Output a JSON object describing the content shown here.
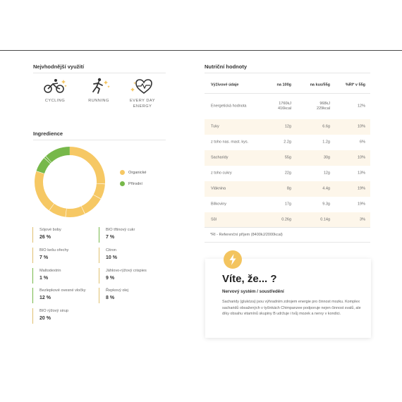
{
  "usage": {
    "title": "Nejvhodnější využití",
    "items": [
      {
        "label": "CYCLING",
        "icon": "cyclist-icon"
      },
      {
        "label": "RUNNING",
        "icon": "runner-icon"
      },
      {
        "label_line1": "EVERY DAY",
        "label_line2": "ENERGY",
        "icon": "heart-pulse-icon"
      }
    ]
  },
  "ingredients": {
    "title": "Ingredience",
    "legend": [
      {
        "label": "Organické",
        "color": "#f6c864"
      },
      {
        "label": "Přírodní",
        "color": "#77b84a"
      }
    ],
    "items": [
      {
        "name": "Sójové boby",
        "pct": "26 %",
        "type": "organic"
      },
      {
        "name": "BIO třtinový cukr",
        "pct": "7 %",
        "type": "natural"
      },
      {
        "name": "BIO kešu ořechy",
        "pct": "7 %",
        "type": "organic"
      },
      {
        "name": "Citron",
        "pct": "10 %",
        "type": "organic"
      },
      {
        "name": "Maltodextrin",
        "pct": "1 %",
        "type": "natural"
      },
      {
        "name": "Jáhlovo-rýžový crispies",
        "pct": "9 %",
        "type": "organic"
      },
      {
        "name": "Bezlepkové ovesné vločky",
        "pct": "12 %",
        "type": "natural"
      },
      {
        "name": "Řepkový olej",
        "pct": "8 %",
        "type": "organic"
      },
      {
        "name": "BIO rýžový sirup",
        "pct": "20 %",
        "type": "organic"
      }
    ]
  },
  "nutrition": {
    "title": "Nutriční hodnoty",
    "headers": [
      "Výživové údaje",
      "na 100g",
      "na kus/55g",
      "%RI* v 55g"
    ],
    "rows": [
      {
        "name": "Energetická hodnota",
        "per100_line1": "1760kJ",
        "per100_line2": "416kcal",
        "perPiece_line1": "968kJ",
        "perPiece_line2": "229kcal",
        "ri": "12%"
      },
      {
        "name": "Tuky",
        "per100": "12g",
        "perPiece": "6.6g",
        "ri": "10%"
      },
      {
        "name": "z toho nas. mast. kys.",
        "per100": "2.2g",
        "perPiece": "1.2g",
        "ri": "6%"
      },
      {
        "name": "Sacharidy",
        "per100": "55g",
        "perPiece": "30g",
        "ri": "10%"
      },
      {
        "name": "z toho cukry",
        "per100": "22g",
        "perPiece": "12g",
        "ri": "13%"
      },
      {
        "name": "Vláknina",
        "per100": "8g",
        "perPiece": "4.4g",
        "ri": "19%"
      },
      {
        "name": "Bílkoviny",
        "per100": "17g",
        "perPiece": "9.3g",
        "ri": "19%"
      },
      {
        "name": "Sůl",
        "per100": "0.26g",
        "perPiece": "0.14g",
        "ri": "3%"
      }
    ],
    "note": "*RI - Referenční příjem (8400kJ/2000kcal)"
  },
  "did_you_know": {
    "title": "Víte, že... ?",
    "subtitle": "Nervový systém / soustředění",
    "text": "Sacharidy (glukóza) jsou výhradním zdrojem energie pro činnost mozku. Komplex sacharidů obsažených v tyčinkách Chimpanzee podporuje nejen činnost svalů, ale díky obsahu vitamínů skupiny B udržuje i tvůj mozek a nervy v kondici."
  },
  "chart_data": {
    "type": "pie",
    "categories": [
      "Sójové boby",
      "BIO kešu ořechy",
      "Citron",
      "Jáhlovo-rýžový crispies",
      "Řepkový olej",
      "BIO rýžový sirup",
      "BIO třtinový cukr",
      "Maltodextrin",
      "Bezlepkové ovesné vločky"
    ],
    "values": [
      26,
      7,
      10,
      9,
      8,
      20,
      7,
      1,
      12
    ],
    "series": [
      {
        "name": "Organické",
        "color": "#f6c864"
      },
      {
        "name": "Přírodní",
        "color": "#77b84a"
      }
    ],
    "legend": "right"
  }
}
